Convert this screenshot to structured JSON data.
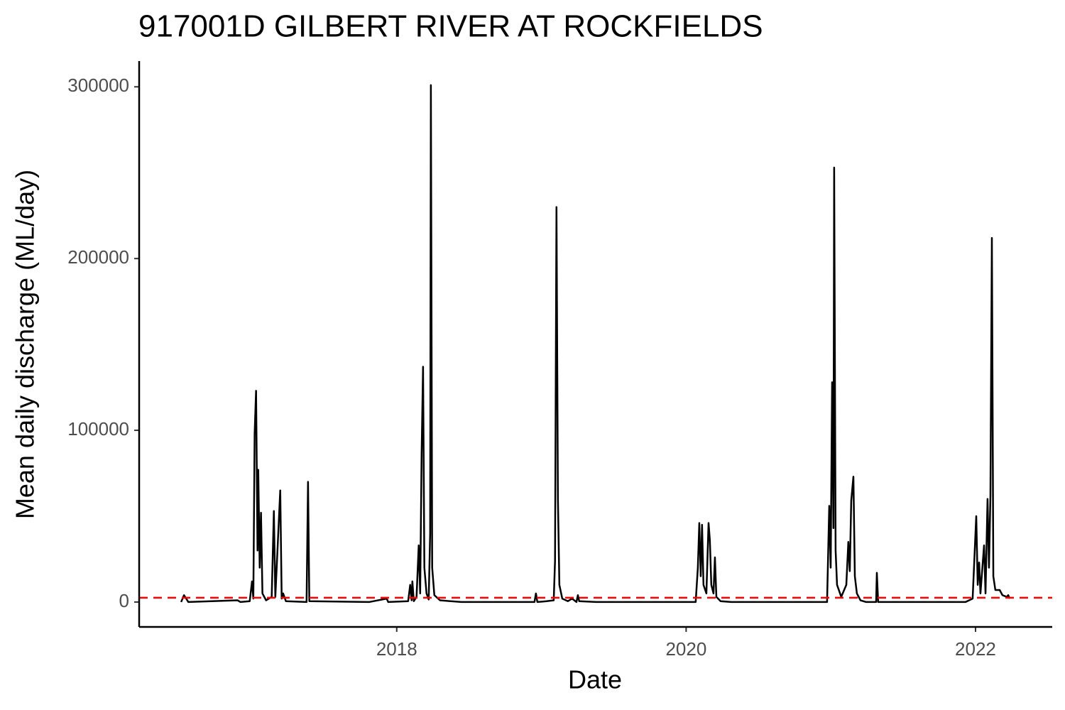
{
  "chart_data": {
    "type": "line",
    "title": "917001D GILBERT RIVER AT ROCKFIELDS",
    "x_label": "Date",
    "y_label": "Mean daily discharge (ML/day)",
    "color": "#000000",
    "x": [
      2016.51,
      2016.53,
      2016.56,
      2016.9,
      2016.92,
      2016.984,
      2017.0,
      2017.009,
      2017.018,
      2017.028,
      2017.038,
      2017.043,
      2017.053,
      2017.062,
      2017.072,
      2017.097,
      2017.136,
      2017.151,
      2017.161,
      2017.195,
      2017.205,
      2017.215,
      2017.234,
      2017.377,
      2017.387,
      2017.396,
      2017.809,
      2017.931,
      2017.941,
      2018.079,
      2018.093,
      2018.103,
      2018.108,
      2018.118,
      2018.137,
      2018.152,
      2018.162,
      2018.172,
      2018.182,
      2018.191,
      2018.206,
      2018.221,
      2018.231,
      2018.236,
      2018.245,
      2018.26,
      2018.299,
      2018.447,
      2018.952,
      2018.962,
      2018.972,
      2019.036,
      2019.085,
      2019.094,
      2019.104,
      2019.114,
      2019.124,
      2019.144,
      2019.183,
      2019.212,
      2019.242,
      2019.252,
      2019.261,
      2019.379,
      2020.066,
      2020.081,
      2020.091,
      2020.101,
      2020.11,
      2020.12,
      2020.14,
      2020.155,
      2020.164,
      2020.174,
      2020.189,
      2020.199,
      2020.209,
      2020.238,
      2020.312,
      2020.974,
      2020.989,
      2020.999,
      2021.009,
      2021.018,
      2021.023,
      2021.033,
      2021.043,
      2021.072,
      2021.107,
      2021.121,
      2021.131,
      2021.141,
      2021.156,
      2021.166,
      2021.18,
      2021.205,
      2021.244,
      2021.313,
      2021.318,
      2021.327,
      2021.931,
      2021.98,
      2022.005,
      2022.015,
      2022.025,
      2022.034,
      2022.059,
      2022.069,
      2022.083,
      2022.093,
      2022.103,
      2022.113,
      2022.123,
      2022.137,
      2022.167,
      2022.186,
      2022.216,
      2022.226,
      2022.236
    ],
    "values": [
      0,
      4000,
      0,
      1000,
      0,
      500,
      12000,
      2000,
      98000,
      123000,
      30000,
      77000,
      20000,
      52000,
      5000,
      1000,
      3000,
      53000,
      3000,
      65000,
      2000,
      5000,
      500,
      0,
      70000,
      500,
      0,
      2000,
      0,
      500,
      10000,
      1000,
      12000,
      500,
      3000,
      33000,
      5000,
      86000,
      137000,
      20000,
      5000,
      1500,
      40000,
      301000,
      20000,
      4000,
      1000,
      0,
      0,
      5000,
      0,
      500,
      1000,
      24000,
      230000,
      60000,
      10000,
      2000,
      500,
      2000,
      0,
      4000,
      500,
      0,
      0,
      20000,
      46000,
      15000,
      45000,
      10000,
      5000,
      46000,
      36000,
      10000,
      5000,
      26000,
      3000,
      500,
      0,
      0,
      56000,
      20000,
      128000,
      43000,
      253000,
      30000,
      10000,
      3000,
      10000,
      35000,
      18000,
      59000,
      73000,
      15000,
      5000,
      1000,
      0,
      0,
      17000,
      0,
      0,
      2000,
      50000,
      10000,
      23000,
      5000,
      33000,
      5000,
      60000,
      20000,
      62000,
      212000,
      15000,
      7000,
      7000,
      4000,
      3000,
      4000,
      2000
    ],
    "hline": {
      "value": 2500,
      "color": "#ff0000"
    },
    "xlim": [
      2016.22,
      2022.53
    ],
    "xticks": [
      2018,
      2020,
      2022
    ],
    "ylim": [
      -14500,
      315000
    ],
    "yticks": [
      0,
      100000,
      200000,
      300000
    ],
    "grid": false
  }
}
